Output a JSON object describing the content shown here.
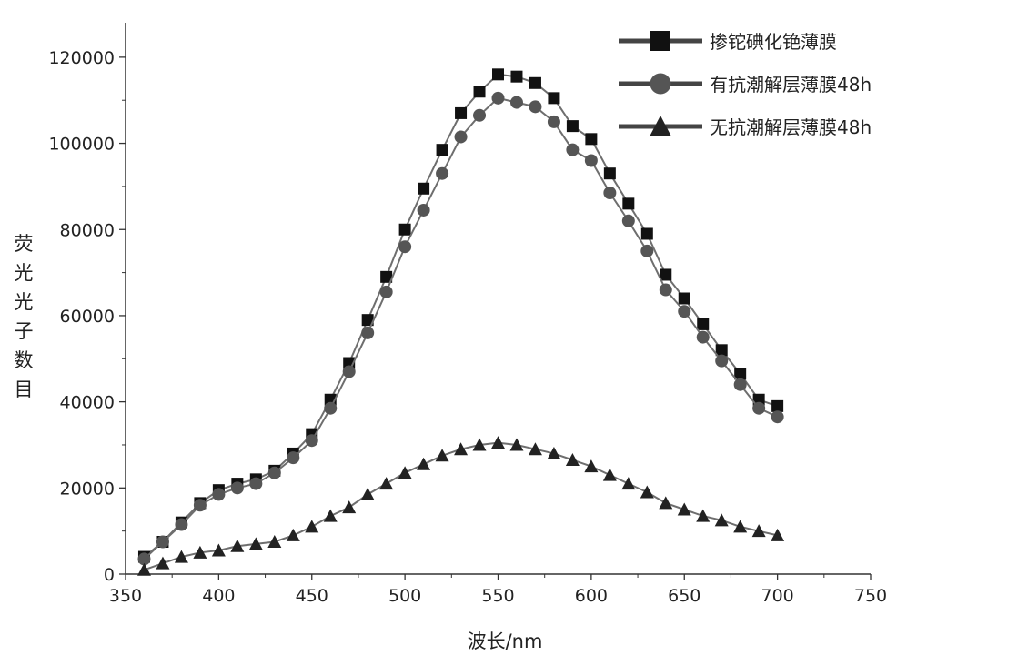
{
  "chart_data": {
    "type": "scatter",
    "xlabel": "波长/nm",
    "ylabel": "荧光光子数目",
    "xlim": [
      350,
      750
    ],
    "ylim": [
      0,
      128000
    ],
    "x_ticks": [
      "350",
      "400",
      "450",
      "500",
      "550",
      "600",
      "650",
      "700",
      "750"
    ],
    "y_ticks": [
      "0",
      "20000",
      "40000",
      "60000",
      "80000",
      "100000",
      "120000"
    ],
    "legend_position": "top-right",
    "grid": false,
    "x": [
      360,
      370,
      380,
      390,
      400,
      410,
      420,
      430,
      440,
      450,
      460,
      470,
      480,
      490,
      500,
      510,
      520,
      530,
      540,
      550,
      560,
      570,
      580,
      590,
      600,
      610,
      620,
      630,
      640,
      650,
      660,
      670,
      680,
      690,
      700
    ],
    "series": [
      {
        "name": "掺铊碘化铯薄膜",
        "marker": "square",
        "color": "#111111",
        "values": [
          4000,
          7500,
          12000,
          16500,
          19500,
          21000,
          22000,
          24000,
          28000,
          32500,
          40500,
          49000,
          59000,
          69000,
          80000,
          89500,
          98500,
          107000,
          112000,
          116000,
          115500,
          114000,
          110500,
          104000,
          101000,
          93000,
          86000,
          79000,
          69500,
          64000,
          58000,
          52000,
          46500,
          40500,
          39000
        ]
      },
      {
        "name": "有抗潮解层薄膜48h",
        "marker": "circle",
        "color": "#555555",
        "values": [
          3500,
          7500,
          11500,
          16000,
          18500,
          20000,
          21000,
          23500,
          27000,
          31000,
          38500,
          47000,
          56000,
          65500,
          76000,
          84500,
          93000,
          101500,
          106500,
          110500,
          109500,
          108500,
          105000,
          98500,
          96000,
          88500,
          82000,
          75000,
          66000,
          61000,
          55000,
          49500,
          44000,
          38500,
          36500
        ]
      },
      {
        "name": "无抗潮解层薄膜48h",
        "marker": "triangle",
        "color": "#222222",
        "values": [
          1000,
          2500,
          4000,
          5000,
          5500,
          6500,
          7000,
          7500,
          9000,
          11000,
          13500,
          15500,
          18500,
          21000,
          23500,
          25500,
          27500,
          29000,
          30000,
          30500,
          30000,
          29000,
          28000,
          26500,
          25000,
          23000,
          21000,
          19000,
          16500,
          15000,
          13500,
          12500,
          11000,
          10000,
          9000
        ]
      }
    ]
  }
}
